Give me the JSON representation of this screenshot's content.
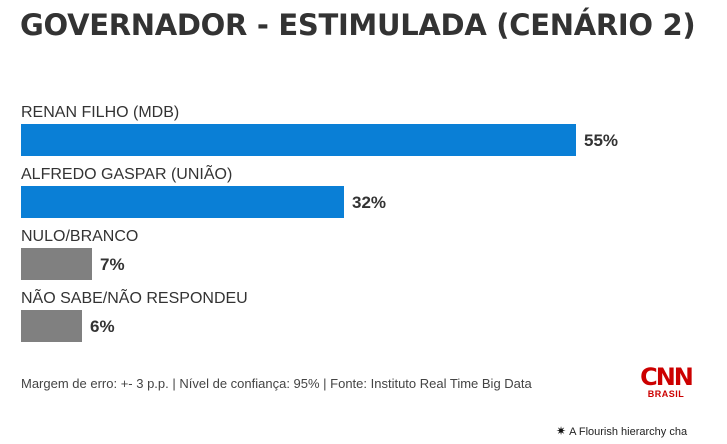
{
  "chart_data": {
    "type": "bar",
    "orientation": "horizontal",
    "title": "GOVERNADOR - ESTIMULADA (CENÁRIO 2)",
    "categories": [
      "RENAN FILHO (MDB)",
      "ALFREDO GASPAR (UNIÃO)",
      "NULO/BRANCO",
      "NÃO SABE/NÃO RESPONDEU"
    ],
    "values": [
      55,
      32,
      7,
      6
    ],
    "value_labels": [
      "55%",
      "32%",
      "7%",
      "6%"
    ],
    "bar_colors": [
      "#0a7fd6",
      "#0a7fd6",
      "#808080",
      "#808080"
    ],
    "xlim": [
      0,
      55
    ],
    "grid": false,
    "legend": "none"
  },
  "footer": {
    "note": "Margem de erro: +- 3 p.p. | Nível de confiança: 95% | Fonte: Instituto Real Time Big Data"
  },
  "logo": {
    "main": "CNN",
    "sub": "BRASIL"
  },
  "flourish": {
    "icon": "flourish-icon",
    "text": "A Flourish hierarchy cha"
  }
}
